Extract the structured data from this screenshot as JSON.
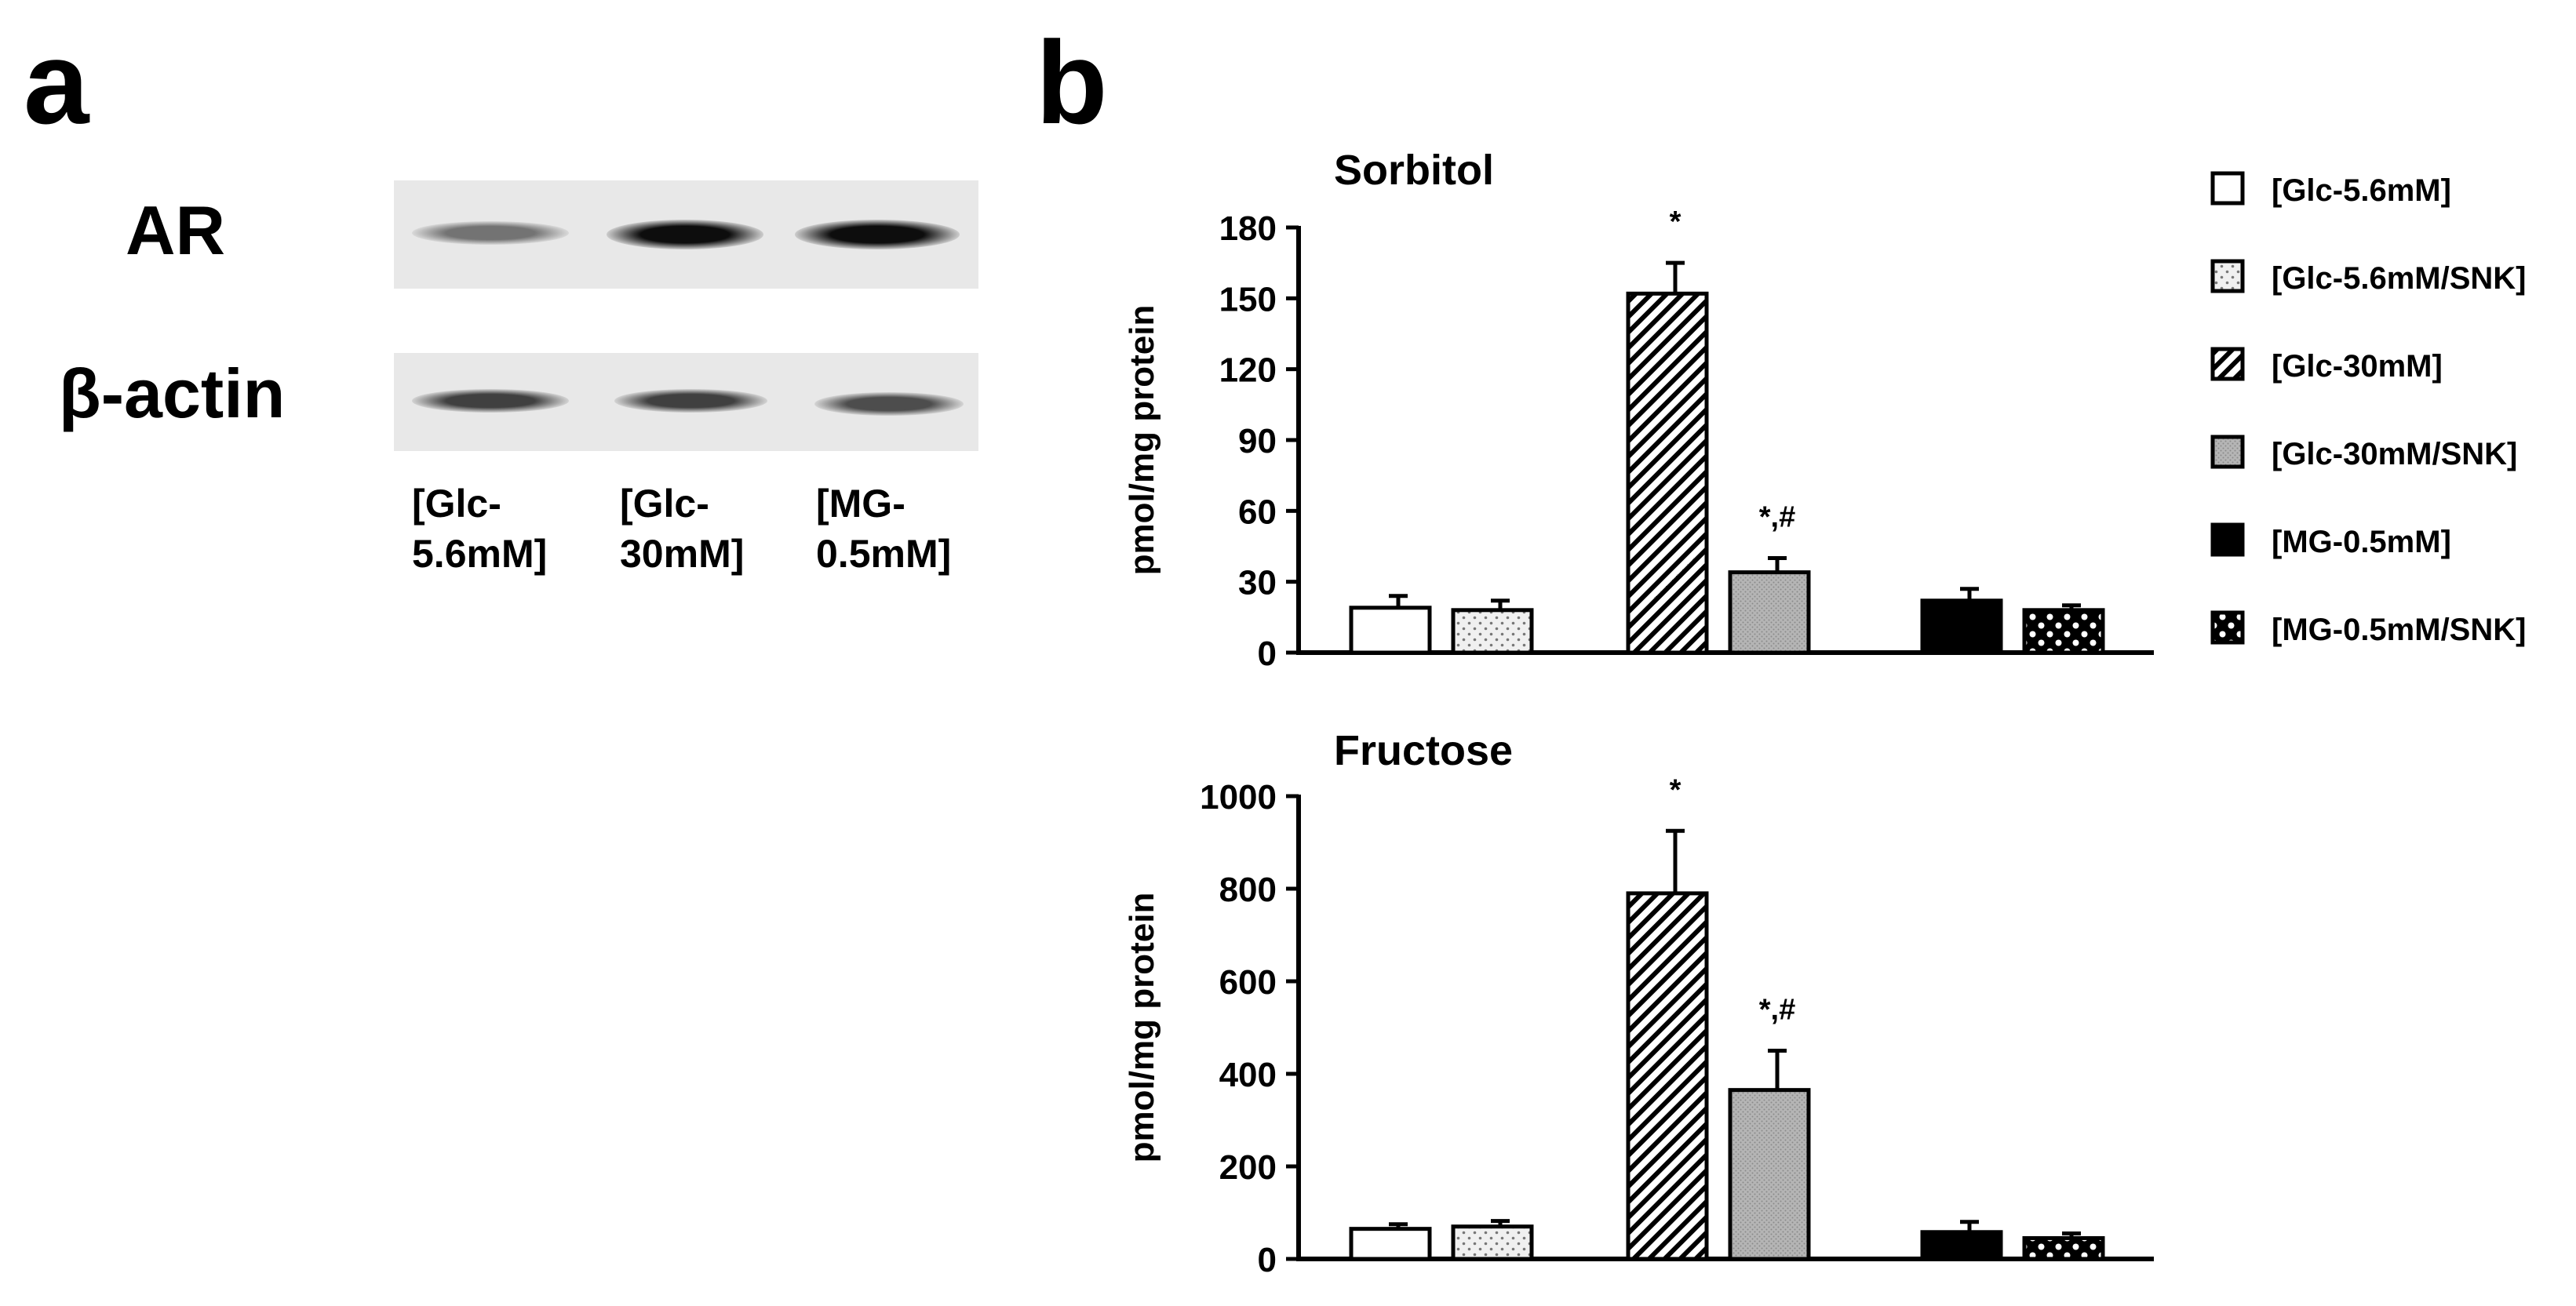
{
  "panel_a": {
    "letter": "a",
    "row_labels": [
      "AR",
      "β-actin"
    ],
    "lanes": [
      "[Glc-\n5.6mM]",
      "[Glc-\n30mM]",
      "[MG-\n0.5mM]"
    ],
    "band_intensity": {
      "AR": [
        0.55,
        0.95,
        0.95
      ],
      "beta_actin": [
        0.75,
        0.75,
        0.7
      ]
    }
  },
  "panel_b": {
    "letter": "b"
  },
  "legend": [
    {
      "label": "[Glc-5.6mM]",
      "pattern": "open"
    },
    {
      "label": "[Glc-5.6mM/SNK]",
      "pattern": "dots"
    },
    {
      "label": "[Glc-30mM]",
      "pattern": "hatch"
    },
    {
      "label": "[Glc-30mM/SNK]",
      "pattern": "gray"
    },
    {
      "label": "[MG-0.5mM]",
      "pattern": "black"
    },
    {
      "label": "[MG-0.5mM/SNK]",
      "pattern": "checker"
    }
  ],
  "chart_data": [
    {
      "type": "bar",
      "title": "Sorbitol",
      "ylabel": "pmol/mg protein",
      "ylim": [
        0,
        180
      ],
      "yticks": [
        0,
        30,
        60,
        90,
        120,
        150,
        180
      ],
      "categories": [
        "[Glc-5.6mM]",
        "[Glc-5.6mM/SNK]",
        "[Glc-30mM]",
        "[Glc-30mM/SNK]",
        "[MG-0.5mM]",
        "[MG-0.5mM/SNK]"
      ],
      "values": [
        19,
        18,
        152,
        34,
        22,
        18
      ],
      "errors": [
        5,
        4,
        13,
        6,
        5,
        2
      ],
      "annotations": [
        "",
        "",
        "*",
        "*,#",
        "",
        ""
      ]
    },
    {
      "type": "bar",
      "title": "Fructose",
      "ylabel": "pmol/mg protein",
      "ylim": [
        0,
        1000
      ],
      "yticks": [
        0,
        200,
        400,
        600,
        800,
        1000
      ],
      "categories": [
        "[Glc-5.6mM]",
        "[Glc-5.6mM/SNK]",
        "[Glc-30mM]",
        "[Glc-30mM/SNK]",
        "[MG-0.5mM]",
        "[MG-0.5mM/SNK]"
      ],
      "values": [
        65,
        70,
        790,
        365,
        58,
        45
      ],
      "errors": [
        10,
        12,
        135,
        85,
        22,
        10
      ],
      "annotations": [
        "",
        "",
        "*",
        "*,#",
        "",
        ""
      ]
    }
  ]
}
